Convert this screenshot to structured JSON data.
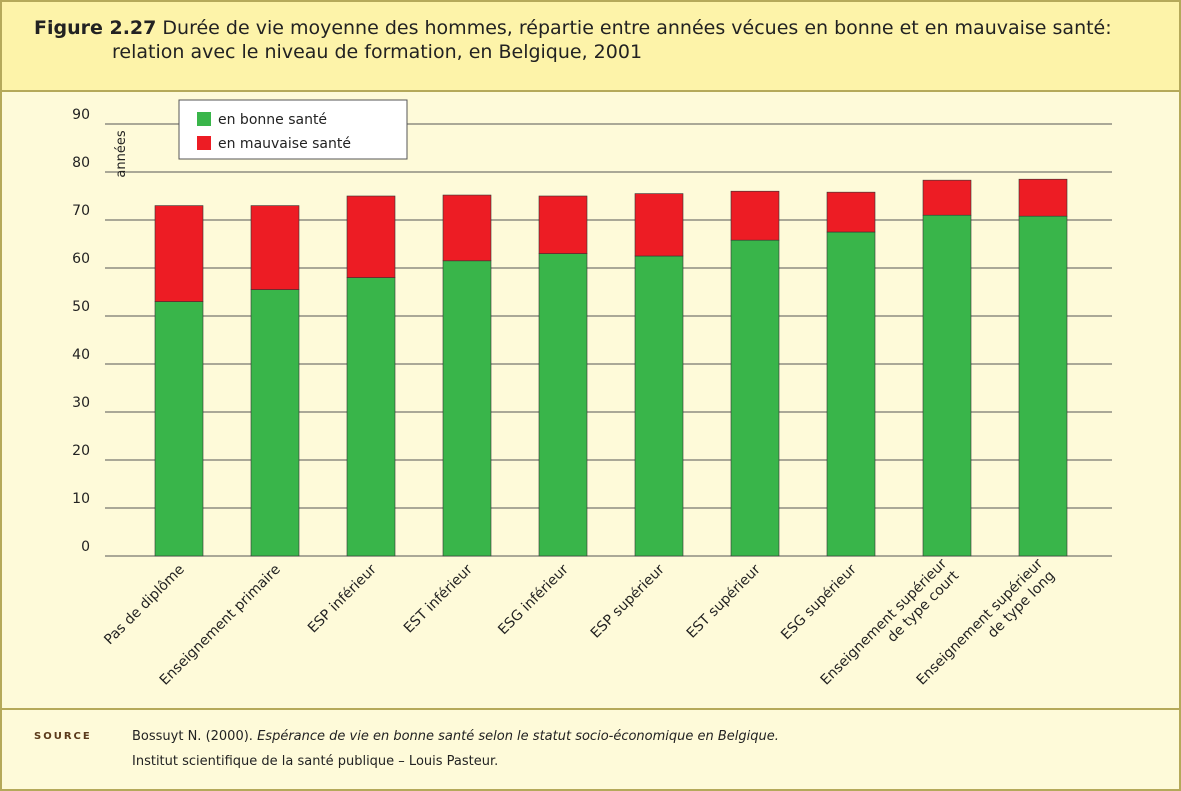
{
  "chart_data": {
    "type": "stacked_bar",
    "figure_label": "Figure 2.27",
    "title": "Durée de vie moyenne des hommes, répartie entre années vécues en bonne et en mauvaise santé: relation avec le niveau de formation, en Belgique, 2001",
    "y_label": "années",
    "categories": [
      "Pas de diplôme",
      "Enseignement primaire",
      "ESP inférieur",
      "EST inférieur",
      "ESG inférieur",
      "ESP supérieur",
      "EST supérieur",
      "ESG supérieur",
      "Enseignement supérieur\nde type court",
      "Enseignement supérieur\nde type long"
    ],
    "series": [
      {
        "name": "en bonne santé",
        "color": "#39b54a",
        "values": [
          53,
          55.5,
          58,
          61.5,
          63,
          62.5,
          65.8,
          67.5,
          71,
          70.8
        ]
      },
      {
        "name": "en mauvaise santé",
        "color": "#ed1c24",
        "values": [
          20,
          17.5,
          17,
          13.7,
          12,
          13,
          10.2,
          8.3,
          7.3,
          7.7
        ]
      }
    ],
    "ylim": [
      0,
      90
    ],
    "yticks": [
      0,
      10,
      20,
      30,
      40,
      50,
      60,
      70,
      80,
      90
    ],
    "grid": true,
    "source": {
      "label": "SOURCE",
      "author": "Bossuyt N. (2000).",
      "work": "Espérance de vie en bonne santé selon le statut socio-économique en Belgique.",
      "publisher": "Institut scientifique de la santé publique – Louis Pasteur."
    }
  }
}
